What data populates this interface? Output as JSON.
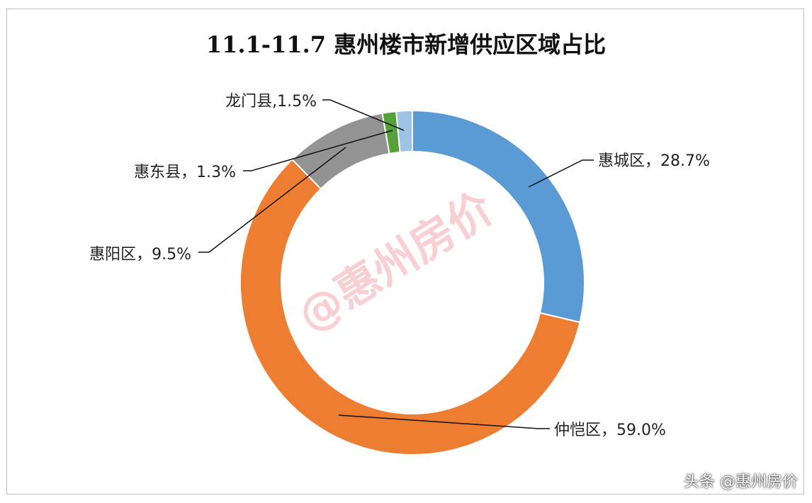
{
  "chart_data": {
    "type": "pie",
    "title": "11.1-11.7 惠州楼市新增供应区域占比",
    "donut": true,
    "slices": [
      {
        "label": "惠城区",
        "display": "惠城区，28.7%",
        "value": 28.7,
        "color": "#5b9bd5"
      },
      {
        "label": "仲恺区",
        "display": "仲恺区，59.0%",
        "value": 59.0,
        "color": "#ed7d31"
      },
      {
        "label": "惠阳区",
        "display": "惠阳区，9.5%",
        "value": 9.5,
        "color": "#939393"
      },
      {
        "label": "惠东县",
        "display": "惠东县，1.3%",
        "value": 1.3,
        "color": "#55a03b"
      },
      {
        "label": "龙门县",
        "display": "龙门县,1.5%",
        "value": 1.5,
        "color": "#9dc3e6"
      }
    ]
  },
  "watermark": "@惠州房价",
  "footer_mark": "头条 @惠州房价"
}
